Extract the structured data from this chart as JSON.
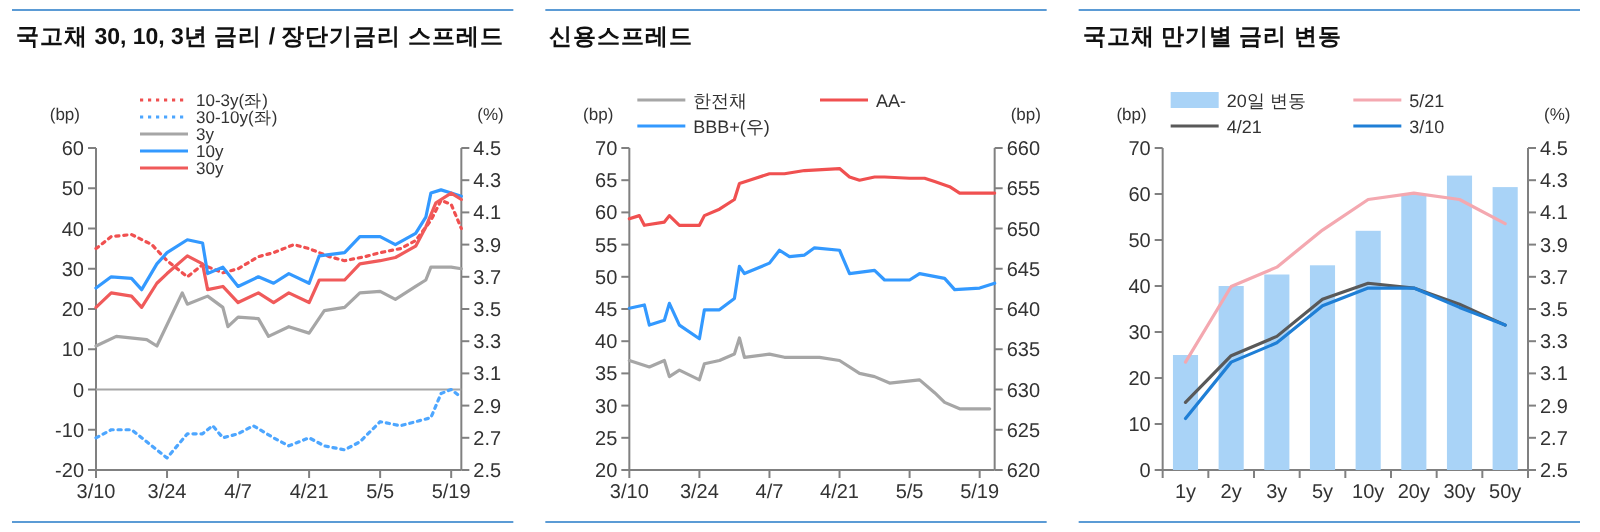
{
  "chart_data": [
    {
      "type": "line",
      "title": "국고채 30, 10, 3년 금리 / 장단기금리 스프레드",
      "ylabel": "(bp)",
      "y2label": "(%)",
      "xlim": [
        "--03-10",
        "--05-21"
      ],
      "xticks": [
        {
          "value": "--03-10",
          "label": "3/10"
        },
        {
          "value": "--03-24",
          "label": "3/24"
        },
        {
          "value": "--04-07",
          "label": "4/7"
        },
        {
          "value": "--04-21",
          "label": "4/21"
        },
        {
          "value": "--05-05",
          "label": "5/5"
        },
        {
          "value": "--05-19",
          "label": "5/19"
        }
      ],
      "ylim": [
        -20,
        60
      ],
      "yticks": [
        -20,
        -10,
        0,
        10,
        20,
        30,
        40,
        50,
        60
      ],
      "y2lim": [
        2.5,
        4.5
      ],
      "y2ticks": [
        2.5,
        2.7,
        2.9,
        3.1,
        3.3,
        3.5,
        3.7,
        3.9,
        4.1,
        4.3,
        4.5
      ],
      "ref_lines": [
        {
          "axis": "y",
          "value": 0,
          "color": "#a6a6a6"
        }
      ],
      "legend": "top left",
      "series": [
        {
          "name": "10-3y(좌)",
          "color": "#f05050",
          "line_style": "dotted",
          "x": [
            "--03-10",
            "--03-13",
            "--03-17",
            "--03-21",
            "--03-24",
            "--03-28",
            "--03-31",
            "--04-04",
            "--04-07",
            "--04-11",
            "--04-14",
            "--04-18",
            "--04-21",
            "--04-25",
            "--04-28",
            "--05-02",
            "--05-05",
            "--05-09",
            "--05-12",
            "--05-15",
            "--05-17",
            "--05-19",
            "--05-21"
          ],
          "values": [
            35,
            38,
            38.5,
            36,
            32,
            28,
            31,
            29,
            30,
            33,
            34,
            36,
            35,
            33,
            32,
            33,
            34,
            35,
            37,
            42,
            47,
            46,
            40
          ]
        },
        {
          "name": "30-10y(좌)",
          "color": "#4da6ff",
          "line_style": "dotted",
          "x": [
            "--03-10",
            "--03-13",
            "--03-17",
            "--03-20",
            "--03-24",
            "--03-28",
            "--03-31",
            "--04-02",
            "--04-04",
            "--04-07",
            "--04-10",
            "--04-14",
            "--04-17",
            "--04-21",
            "--04-24",
            "--04-28",
            "--05-01",
            "--05-05",
            "--05-09",
            "--05-12",
            "--05-15",
            "--05-17",
            "--05-19",
            "--05-21"
          ],
          "values": [
            -12,
            -10,
            -10,
            -13,
            -17,
            -11,
            -11,
            -9,
            -12,
            -11,
            -9,
            -12,
            -14,
            -12,
            -14,
            -15,
            -13,
            -8,
            -9,
            -8,
            -7,
            -1,
            0,
            -2
          ]
        },
        {
          "name": "3y",
          "color": "#a6a6a6",
          "axis": "y2",
          "x": [
            "--03-10",
            "--03-14",
            "--03-20",
            "--03-22",
            "--03-27",
            "--03-28",
            "--04-01",
            "--04-04",
            "--04-05",
            "--04-07",
            "--04-11",
            "--04-13",
            "--04-17",
            "--04-21",
            "--04-24",
            "--04-28",
            "--05-01",
            "--05-05",
            "--05-08",
            "--05-12",
            "--05-14",
            "--05-15",
            "--05-19",
            "--05-21"
          ],
          "values": [
            3.27,
            3.33,
            3.31,
            3.27,
            3.6,
            3.53,
            3.58,
            3.51,
            3.39,
            3.45,
            3.44,
            3.33,
            3.39,
            3.35,
            3.49,
            3.51,
            3.6,
            3.61,
            3.56,
            3.64,
            3.68,
            3.76,
            3.76,
            3.75
          ]
        },
        {
          "name": "10y",
          "color": "#3399ff",
          "axis": "y2",
          "x": [
            "--03-10",
            "--03-13",
            "--03-17",
            "--03-19",
            "--03-22",
            "--03-24",
            "--03-28",
            "--03-31",
            "--04-01",
            "--04-04",
            "--04-07",
            "--04-11",
            "--04-14",
            "--04-17",
            "--04-21",
            "--04-23",
            "--04-28",
            "--05-01",
            "--05-05",
            "--05-08",
            "--05-12",
            "--05-14",
            "--05-15",
            "--05-17",
            "--05-19",
            "--05-21"
          ],
          "values": [
            3.63,
            3.7,
            3.69,
            3.62,
            3.78,
            3.85,
            3.93,
            3.91,
            3.72,
            3.76,
            3.64,
            3.7,
            3.66,
            3.72,
            3.66,
            3.83,
            3.85,
            3.95,
            3.95,
            3.9,
            3.97,
            4.07,
            4.22,
            4.24,
            4.22,
            4.2
          ]
        },
        {
          "name": "30y",
          "color": "#f05a5a",
          "axis": "y2",
          "x": [
            "--03-10",
            "--03-13",
            "--03-17",
            "--03-19",
            "--03-22",
            "--03-24",
            "--03-28",
            "--03-31",
            "--04-01",
            "--04-04",
            "--04-07",
            "--04-11",
            "--04-14",
            "--04-17",
            "--04-21",
            "--04-23",
            "--04-28",
            "--05-01",
            "--05-05",
            "--05-08",
            "--05-12",
            "--05-14",
            "--05-16",
            "--05-19",
            "--05-21"
          ],
          "values": [
            3.51,
            3.6,
            3.58,
            3.51,
            3.66,
            3.72,
            3.83,
            3.78,
            3.62,
            3.64,
            3.54,
            3.6,
            3.54,
            3.6,
            3.54,
            3.68,
            3.68,
            3.78,
            3.8,
            3.82,
            3.89,
            4.01,
            4.16,
            4.22,
            4.18
          ]
        }
      ]
    },
    {
      "type": "line",
      "title": "신용스프레드",
      "ylabel": "(bp)",
      "y2label": "(bp)",
      "xlim": [
        "--03-10",
        "--05-22"
      ],
      "xticks": [
        {
          "value": "--03-10",
          "label": "3/10"
        },
        {
          "value": "--03-24",
          "label": "3/24"
        },
        {
          "value": "--04-07",
          "label": "4/7"
        },
        {
          "value": "--04-21",
          "label": "4/21"
        },
        {
          "value": "--05-05",
          "label": "5/5"
        },
        {
          "value": "--05-19",
          "label": "5/19"
        }
      ],
      "ylim": [
        20,
        70
      ],
      "yticks": [
        20,
        25,
        30,
        35,
        40,
        45,
        50,
        55,
        60,
        65,
        70
      ],
      "y2lim": [
        620,
        660
      ],
      "y2ticks": [
        620,
        625,
        630,
        635,
        640,
        645,
        650,
        655,
        660
      ],
      "legend": "top",
      "series": [
        {
          "name": "한전채",
          "color": "#a6a6a6",
          "x": [
            "--03-10",
            "--03-14",
            "--03-17",
            "--03-18",
            "--03-20",
            "--03-24",
            "--03-25",
            "--03-28",
            "--03-31",
            "--04-01",
            "--04-02",
            "--04-07",
            "--04-10",
            "--04-17",
            "--04-21",
            "--04-25",
            "--04-28",
            "--05-01",
            "--05-07",
            "--05-10",
            "--05-12",
            "--05-15",
            "--05-21"
          ],
          "values": [
            37,
            36,
            37,
            34.5,
            35.5,
            34,
            36.5,
            37,
            38,
            40.5,
            37.5,
            38,
            37.5,
            37.5,
            37,
            35,
            34.5,
            33.5,
            34,
            32,
            30.5,
            29.5,
            29.5
          ]
        },
        {
          "name": "AA-",
          "color": "#f05050",
          "x": [
            "--03-10",
            "--03-12",
            "--03-13",
            "--03-17",
            "--03-18",
            "--03-20",
            "--03-24",
            "--03-25",
            "--03-28",
            "--03-31",
            "--04-01",
            "--04-03",
            "--04-07",
            "--04-10",
            "--04-14",
            "--04-21",
            "--04-23",
            "--04-25",
            "--04-28",
            "--04-30",
            "--05-05",
            "--05-08",
            "--05-10",
            "--05-13",
            "--05-15",
            "--05-19",
            "--05-22"
          ],
          "values": [
            59,
            59.5,
            58,
            58.5,
            59.5,
            58,
            58,
            59.5,
            60.5,
            62,
            64.5,
            65,
            66,
            66,
            66.5,
            66.8,
            65.5,
            65,
            65.5,
            65.5,
            65.3,
            65.3,
            64.8,
            64,
            63,
            63,
            63
          ]
        },
        {
          "name": "BBB+(우)",
          "color": "#3399ff",
          "axis": "y2",
          "x": [
            "--03-10",
            "--03-13",
            "--03-14",
            "--03-17",
            "--03-18",
            "--03-20",
            "--03-24",
            "--03-25",
            "--03-28",
            "--03-31",
            "--04-01",
            "--04-02",
            "--04-07",
            "--04-09",
            "--04-11",
            "--04-14",
            "--04-16",
            "--04-21",
            "--04-23",
            "--04-28",
            "--04-30",
            "--05-05",
            "--05-07",
            "--05-12",
            "--05-14",
            "--05-19",
            "--05-22"
          ],
          "values": [
            640.1,
            640.5,
            638,
            638.6,
            640.7,
            638,
            636.3,
            639.9,
            639.9,
            641.3,
            645.3,
            644.4,
            645.7,
            647.3,
            646.5,
            646.7,
            647.6,
            647.3,
            644.4,
            644.8,
            643.6,
            643.6,
            644.4,
            643.8,
            642.4,
            642.6,
            643.2
          ]
        }
      ]
    },
    {
      "type": "line",
      "title": "국고채 만기별 금리 변동",
      "ylabel": "(bp)",
      "y2label": "(%)",
      "categories": [
        "1y",
        "2y",
        "3y",
        "5y",
        "10y",
        "20y",
        "30y",
        "50y"
      ],
      "ylim": [
        0,
        70
      ],
      "yticks": [
        0,
        10,
        20,
        30,
        40,
        50,
        60,
        70
      ],
      "y2lim": [
        2.5,
        4.5
      ],
      "y2ticks": [
        2.5,
        2.7,
        2.9,
        3.1,
        3.3,
        3.5,
        3.7,
        3.9,
        4.1,
        4.3,
        4.5
      ],
      "legend": "top",
      "series": [
        {
          "name": "20일 변동",
          "type": "bar",
          "color": "#a9d3f7",
          "values": [
            25,
            40,
            42.5,
            44.5,
            52,
            60,
            64,
            61.5
          ]
        },
        {
          "name": "5/21",
          "color": "#f4a8b0",
          "axis": "y2",
          "values": [
            3.17,
            3.64,
            3.76,
            3.99,
            4.18,
            4.22,
            4.18,
            4.03
          ]
        },
        {
          "name": "4/21",
          "color": "#595959",
          "axis": "y2",
          "values": [
            2.92,
            3.21,
            3.33,
            3.56,
            3.66,
            3.63,
            3.53,
            3.4
          ]
        },
        {
          "name": "3/10",
          "color": "#1f7fd6",
          "axis": "y2",
          "values": [
            2.82,
            3.17,
            3.29,
            3.52,
            3.63,
            3.63,
            3.51,
            3.4
          ]
        }
      ]
    }
  ]
}
